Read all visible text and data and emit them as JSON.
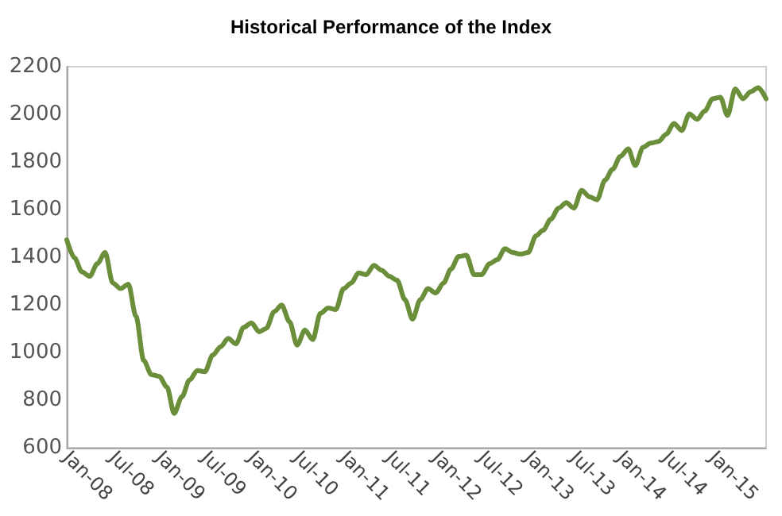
{
  "chart_data": {
    "type": "line",
    "title": "Historical Performance of the Index",
    "x": [
      "2008-01",
      "2008-02",
      "2008-03",
      "2008-04",
      "2008-05",
      "2008-06",
      "2008-07",
      "2008-08",
      "2008-09",
      "2008-10",
      "2008-11",
      "2008-12",
      "2009-01",
      "2009-02",
      "2009-03",
      "2009-04",
      "2009-05",
      "2009-06",
      "2009-07",
      "2009-08",
      "2009-09",
      "2009-10",
      "2009-11",
      "2009-12",
      "2010-01",
      "2010-02",
      "2010-03",
      "2010-04",
      "2010-05",
      "2010-06",
      "2010-07",
      "2010-08",
      "2010-09",
      "2010-10",
      "2010-11",
      "2010-12",
      "2011-01",
      "2011-02",
      "2011-03",
      "2011-04",
      "2011-05",
      "2011-06",
      "2011-07",
      "2011-08",
      "2011-09",
      "2011-10",
      "2011-11",
      "2011-12",
      "2012-01",
      "2012-02",
      "2012-03",
      "2012-04",
      "2012-05",
      "2012-06",
      "2012-07",
      "2012-08",
      "2012-09",
      "2012-10",
      "2012-11",
      "2012-12",
      "2013-01",
      "2013-02",
      "2013-03",
      "2013-04",
      "2013-05",
      "2013-06",
      "2013-07",
      "2013-08",
      "2013-09",
      "2013-10",
      "2013-11",
      "2013-12",
      "2014-01",
      "2014-02",
      "2014-03",
      "2014-04",
      "2014-05",
      "2014-06",
      "2014-07",
      "2014-08",
      "2014-09",
      "2014-10",
      "2014-11",
      "2014-12",
      "2015-01",
      "2015-02",
      "2015-03",
      "2015-04",
      "2015-05",
      "2015-06",
      "2015-07",
      "2015-08"
    ],
    "series": [
      {
        "color": "#6b8e3a",
        "values": [
          1473,
          1397,
          1338,
          1320,
          1373,
          1420,
          1292,
          1268,
          1287,
          1152,
          966,
          907,
          900,
          854,
          744,
          814,
          884,
          924,
          919,
          989,
          1024,
          1059,
          1036,
          1105,
          1124,
          1087,
          1101,
          1171,
          1199,
          1129,
          1031,
          1094,
          1054,
          1164,
          1187,
          1180,
          1268,
          1292,
          1334,
          1327,
          1366,
          1345,
          1320,
          1303,
          1222,
          1140,
          1222,
          1268,
          1250,
          1292,
          1350,
          1403,
          1408,
          1327,
          1327,
          1373,
          1390,
          1436,
          1420,
          1413,
          1420,
          1490,
          1513,
          1560,
          1606,
          1629,
          1606,
          1681,
          1653,
          1641,
          1723,
          1769,
          1823,
          1855,
          1785,
          1862,
          1879,
          1886,
          1916,
          1962,
          1932,
          2002,
          1979,
          2014,
          2065,
          2072,
          1995,
          2107,
          2065,
          2095,
          2112,
          2065
        ]
      }
    ],
    "xlim": [
      "2008-01",
      "2015-08"
    ],
    "xticks": [
      {
        "value": "2008-01",
        "label": "Jan-08"
      },
      {
        "value": "2008-07",
        "label": "Jul-08"
      },
      {
        "value": "2009-01",
        "label": "Jan-09"
      },
      {
        "value": "2009-07",
        "label": "Jul-09"
      },
      {
        "value": "2010-01",
        "label": "Jan-10"
      },
      {
        "value": "2010-07",
        "label": "Jul-10"
      },
      {
        "value": "2011-01",
        "label": "Jan-11"
      },
      {
        "value": "2011-07",
        "label": "Jul-11"
      },
      {
        "value": "2012-01",
        "label": "Jan-12"
      },
      {
        "value": "2012-07",
        "label": "Jul-12"
      },
      {
        "value": "2013-01",
        "label": "Jan-13"
      },
      {
        "value": "2013-07",
        "label": "Jul-13"
      },
      {
        "value": "2014-01",
        "label": "Jan-14"
      },
      {
        "value": "2014-07",
        "label": "Jul-14"
      },
      {
        "value": "2015-01",
        "label": "Jan-15"
      }
    ],
    "ylim": [
      600,
      2200
    ],
    "yticks": [
      600,
      800,
      1000,
      1200,
      1400,
      1600,
      1800,
      2000,
      2200
    ],
    "grid": false,
    "marker": "none",
    "line_style": "solid"
  }
}
